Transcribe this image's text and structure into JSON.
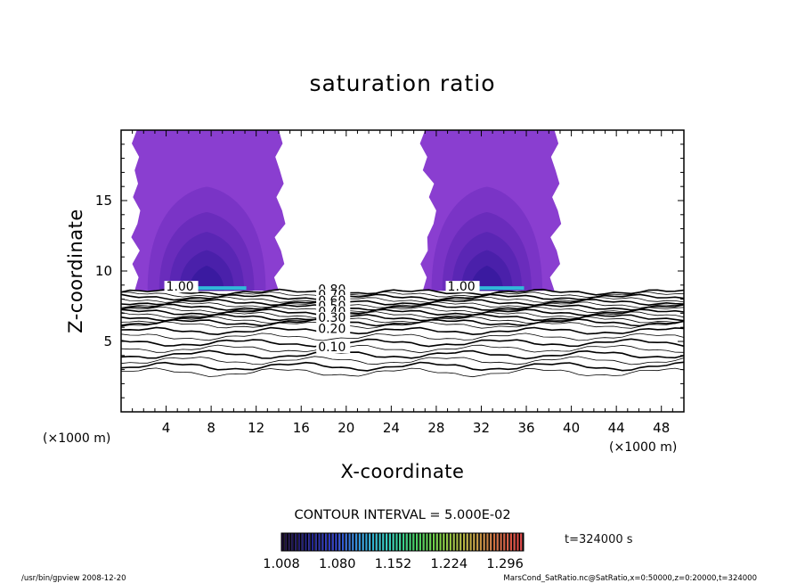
{
  "chart_data": {
    "type": "contour",
    "title": "saturation ratio",
    "xlabel": "X-coordinate",
    "ylabel": "Z-coordinate",
    "x_unit_left": "(×1000 m)",
    "x_unit_right": "(×1000 m)",
    "xlim": [
      0,
      50
    ],
    "ylim": [
      0,
      20
    ],
    "xticks": [
      4,
      8,
      12,
      16,
      20,
      24,
      28,
      32,
      36,
      40,
      44,
      48
    ],
    "yticks": [
      5,
      10,
      15
    ],
    "contour_labels": [
      {
        "text": "1.00",
        "x": 4,
        "z": 8.6
      },
      {
        "text": "1.00",
        "x": 29,
        "z": 8.6
      },
      {
        "text": "0.80",
        "x": 17.5,
        "z": 8.4
      },
      {
        "text": "0.70",
        "x": 17.5,
        "z": 8.0
      },
      {
        "text": "0.60",
        "x": 17.5,
        "z": 7.6
      },
      {
        "text": "0.50",
        "x": 17.5,
        "z": 7.2
      },
      {
        "text": "0.40",
        "x": 17.5,
        "z": 6.8
      },
      {
        "text": "0.30",
        "x": 17.5,
        "z": 6.4
      },
      {
        "text": "0.20",
        "x": 17.5,
        "z": 5.6
      },
      {
        "text": "0.10",
        "x": 17.5,
        "z": 4.3
      }
    ],
    "contour_interval_text": "CONTOUR INTERVAL = 5.000E-02",
    "colorbar": {
      "ticks": [
        "1.008",
        "1.080",
        "1.152",
        "1.224",
        "1.296"
      ],
      "min": 1.008,
      "max": 1.32,
      "colors": [
        "#1a0a35",
        "#20208a",
        "#3040d0",
        "#30a0e0",
        "#30d0c0",
        "#40d060",
        "#80d040",
        "#c0b040",
        "#d07040",
        "#e04040"
      ]
    },
    "fill_colors": {
      "outer": "#8a3ed0",
      "level2": "#7a34c6",
      "level3": "#6a2cbc",
      "level4": "#5a26b4",
      "level5": "#4a20aa",
      "core": "#3a1aa0",
      "peak": "#30b8d8"
    },
    "cloud_columns": [
      {
        "x_left": 1.2,
        "x_right": 14.0,
        "z_base": 8.6
      },
      {
        "x_left": 26.5,
        "x_right": 38.5,
        "z_base": 8.6
      }
    ]
  },
  "time_label": "t=324000 s",
  "footer_left": "/usr/bin/gpview   2008-12-20",
  "footer_right": "MarsCond_SatRatio.nc@SatRatio,x=0:50000,z=0:20000,t=324000"
}
